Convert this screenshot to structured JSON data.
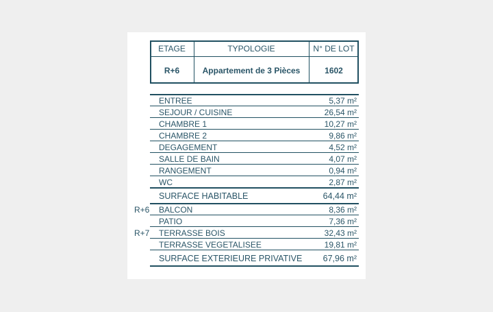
{
  "header": {
    "columns": [
      "ETAGE",
      "TYPOLOGIE",
      "N° DE LOT"
    ],
    "row": [
      "R+6",
      "Appartement de 3 Pièces",
      "1602"
    ]
  },
  "rooms": [
    {
      "name": "ENTREE",
      "area": "5,37 m²"
    },
    {
      "name": "SEJOUR / CUISINE",
      "area": "26,54 m²"
    },
    {
      "name": "CHAMBRE 1",
      "area": "10,27 m²"
    },
    {
      "name": "CHAMBRE 2",
      "area": "9,86 m²"
    },
    {
      "name": "DEGAGEMENT",
      "area": "4,52 m²"
    },
    {
      "name": "SALLE DE BAIN",
      "area": "4,07 m²"
    },
    {
      "name": "RANGEMENT",
      "area": "0,94 m²"
    },
    {
      "name": "WC",
      "area": "2,87 m²"
    },
    {
      "name": "SURFACE HABITABLE",
      "area": "64,44 m²"
    },
    {
      "level": "R+6",
      "name": "BALCON",
      "area": "8,36 m²"
    },
    {
      "name": "PATIO",
      "area": "7,36 m²"
    },
    {
      "level": "R+7",
      "name": "TERRASSE BOIS",
      "area": "32,43 m²"
    },
    {
      "name": "TERRASSE VEGETALISEE",
      "area": "19,81 m²"
    },
    {
      "name": "SURFACE EXTERIEURE PRIVATIVE",
      "area": "67,96 m²"
    }
  ]
}
